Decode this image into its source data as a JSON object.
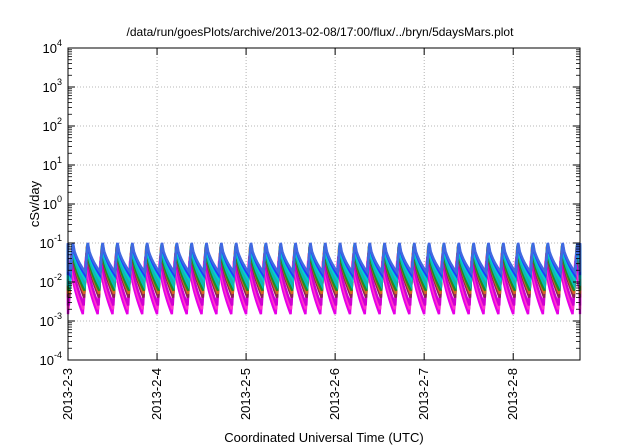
{
  "chart_data": {
    "type": "line",
    "title": "/data/run/goesPlots/archive/2013-02-08/17:00/flux/../bryn/5daysMars.plot",
    "xlabel": "Coordinated Universal Time (UTC)",
    "ylabel": "cSv/day",
    "y_scale": "log",
    "ylim": [
      0.0001,
      10000
    ],
    "xlim": [
      0,
      5.75
    ],
    "x_origin_date": "2013-2-3",
    "x_ticks": [
      {
        "value": 0,
        "label": "2013-2-3"
      },
      {
        "value": 1,
        "label": "2013-2-4"
      },
      {
        "value": 2,
        "label": "2013-2-5"
      },
      {
        "value": 3,
        "label": "2013-2-6"
      },
      {
        "value": 4,
        "label": "2013-2-7"
      },
      {
        "value": 5,
        "label": "2013-2-8"
      }
    ],
    "y_ticks": [
      {
        "value": 10000,
        "base": "10",
        "exp": "4"
      },
      {
        "value": 1000,
        "base": "10",
        "exp": "3"
      },
      {
        "value": 100,
        "base": "10",
        "exp": "2"
      },
      {
        "value": 10,
        "base": "10",
        "exp": "1"
      },
      {
        "value": 1,
        "base": "10",
        "exp": "0"
      },
      {
        "value": 0.1,
        "base": "10",
        "exp": "-1"
      },
      {
        "value": 0.01,
        "base": "10",
        "exp": "-2"
      },
      {
        "value": 0.001,
        "base": "10",
        "exp": "-3"
      },
      {
        "value": 0.0001,
        "base": "10",
        "exp": "-4"
      }
    ],
    "grid": true,
    "cycles_per_day": 6,
    "series": [
      {
        "color": "#e600e6",
        "offset": 0.0,
        "peak": 0.035,
        "trough": 0.0015
      },
      {
        "color": "#ff33cc",
        "offset": 0.03,
        "peak": 0.045,
        "trough": 0.002
      },
      {
        "color": "#d000d0",
        "offset": 0.06,
        "peak": 0.055,
        "trough": 0.0025
      },
      {
        "color": "#8b2252",
        "offset": 0.09,
        "peak": 0.08,
        "trough": 0.004
      },
      {
        "color": "#d2691e",
        "offset": 0.1,
        "peak": 0.085,
        "trough": 0.005
      },
      {
        "color": "#228b22",
        "offset": 0.11,
        "peak": 0.075,
        "trough": 0.006
      },
      {
        "color": "#00bfbf",
        "offset": 0.12,
        "peak": 0.09,
        "trough": 0.008
      },
      {
        "color": "#20b2aa",
        "offset": 0.13,
        "peak": 0.095,
        "trough": 0.01
      },
      {
        "color": "#00ced1",
        "offset": 0.14,
        "peak": 0.09,
        "trough": 0.012
      },
      {
        "color": "#1e3cff",
        "offset": 0.15,
        "peak": 0.1,
        "trough": 0.015
      },
      {
        "color": "#4169e1",
        "offset": 0.16,
        "peak": 0.1,
        "trough": 0.018
      }
    ]
  }
}
